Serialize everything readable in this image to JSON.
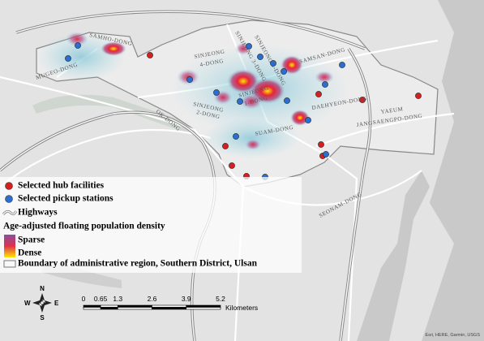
{
  "map": {
    "districts": [
      {
        "label": "SAMHO-DONG"
      },
      {
        "label": "MUGEO-DONG"
      },
      {
        "label": "SINJEONG 3-DONG"
      },
      {
        "label": "SINJEONG 5-DONG"
      },
      {
        "label": "SINJEONG"
      },
      {
        "label": "4-DONG"
      },
      {
        "label": "SAMSAN-DONG"
      },
      {
        "label": "SINJEONG"
      },
      {
        "label": "1-DONG"
      },
      {
        "label": "SINJEONG"
      },
      {
        "label": "2-DONG"
      },
      {
        "label": "OK-DONG"
      },
      {
        "label": "DAEHYEON-DONG"
      },
      {
        "label": "YAEUM"
      },
      {
        "label": "JANGSAENGPO-DONG"
      },
      {
        "label": "SUAM-DONG"
      },
      {
        "label": "SEONAM-DONG"
      }
    ]
  },
  "legend": {
    "hub": "Selected hub facilities",
    "pickup": "Selected pickup stations",
    "highways": "Highways",
    "density_title": "Age-adjusted floating population density",
    "sparse": "Sparse",
    "dense": "Dense",
    "boundary": "Boundary of administrative region, Southern District, Ulsan"
  },
  "scale_bar": {
    "ticks": [
      0,
      0.65,
      1.3,
      2.6,
      3.9,
      5.2
    ],
    "unit": "Kilometers"
  },
  "compass": {
    "n": "N",
    "s": "S",
    "e": "E",
    "w": "W"
  },
  "attribution": "Esri, HERE, Garmin, USGS"
}
